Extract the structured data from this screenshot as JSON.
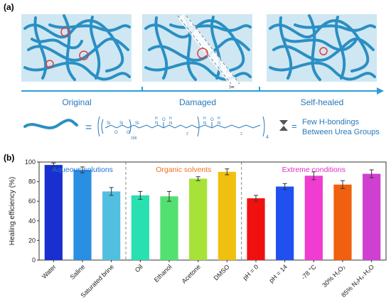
{
  "panel_a": {
    "label": "(a)",
    "stages": [
      "Original",
      "Damaged",
      "Self-healed"
    ],
    "formula": {
      "si1": "Si",
      "o1": "O",
      "si2": "Si",
      "o2": "O",
      "si3": "Si",
      "sub_n": "268",
      "h1": "H",
      "n1": "N",
      "o3": "O",
      "h2": "H",
      "n2": "N",
      "h3": "H",
      "n3": "N",
      "o4": "O",
      "h4": "H",
      "n4": "N",
      "sub_2a": "2",
      "sub_2b": "2",
      "sub_4": "4"
    },
    "equals": "=",
    "legend_line1": "Few  H-bondings",
    "legend_line2": "Between Urea Groups",
    "colors": {
      "chain": "#2a8fc4",
      "arrow": "#2a9fd6",
      "bg": "#cfe7f2",
      "circle": "#e63a3a"
    }
  },
  "panel_b": {
    "label": "(b)"
  },
  "chart_data": {
    "type": "bar",
    "ylabel": "Healing efficiency (%)",
    "ylim": [
      0,
      100
    ],
    "yticks": [
      0,
      20,
      40,
      60,
      80,
      100
    ],
    "groups": [
      {
        "name": "Aqueous solutions",
        "color": "#1f6fd1"
      },
      {
        "name": "Organic solvents",
        "color": "#f0701e"
      },
      {
        "name": "Extreme conditions",
        "color": "#e02ec8"
      }
    ],
    "categories": [
      "Water",
      "Saline",
      "Saturated brine",
      "Oil",
      "Ethanol",
      "Acetone",
      "DMSO",
      "pH = 0",
      "pH = 14",
      "-78 °C",
      "30% H₂O₂",
      "85% N₂H₄·H₂O"
    ],
    "values": [
      97,
      92,
      70,
      66,
      65,
      83,
      90,
      63,
      75,
      86,
      77,
      88
    ],
    "errors": [
      2,
      3,
      4,
      4,
      5,
      2,
      3,
      3,
      3,
      4,
      4,
      4
    ],
    "colors": [
      "#1a2fd0",
      "#2a8fe0",
      "#52bfe0",
      "#28e0b0",
      "#52e070",
      "#a6e238",
      "#f0c010",
      "#f01010",
      "#2050f0",
      "#f03cd0",
      "#f06010",
      "#d040d0"
    ]
  }
}
